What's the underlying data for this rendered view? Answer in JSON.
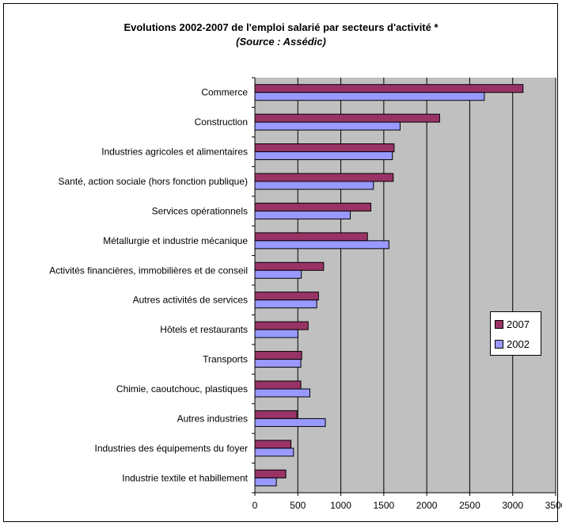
{
  "chart_data": {
    "type": "bar",
    "orientation": "horizontal",
    "title": "Evolutions 2002-2007 de l'emploi salarié par secteurs d'activité *",
    "subtitle": "(Source : Assédic)",
    "categories": [
      "Commerce",
      "Construction",
      "Industries agricoles et alimentaires",
      "Santé, action sociale (hors fonction publique)",
      "Services opérationnels",
      "Métallurgie et industrie mécanique",
      "Activités financières, immobilières et de conseil",
      "Autres activités de services",
      "Hôtels et restaurants",
      "Transports",
      "Chimie, caoutchouc, plastiques",
      "Autres industries",
      "Industries des équipements du foyer",
      "Industrie textile et habillement"
    ],
    "series": [
      {
        "name": "2007",
        "color": "#993366",
        "values": [
          3120,
          2150,
          1620,
          1610,
          1350,
          1310,
          800,
          740,
          620,
          545,
          535,
          490,
          420,
          360
        ]
      },
      {
        "name": "2002",
        "color": "#9999ff",
        "values": [
          2670,
          1690,
          1600,
          1380,
          1110,
          1560,
          540,
          720,
          500,
          535,
          640,
          820,
          450,
          250
        ]
      }
    ],
    "xlim": [
      0,
      3500
    ],
    "xticks": [
      "0",
      "500",
      "1000",
      "1500",
      "2000",
      "2500",
      "3000",
      "3500"
    ],
    "grid": true,
    "plot_background": "#c0c0c0",
    "legend_position": "right"
  }
}
